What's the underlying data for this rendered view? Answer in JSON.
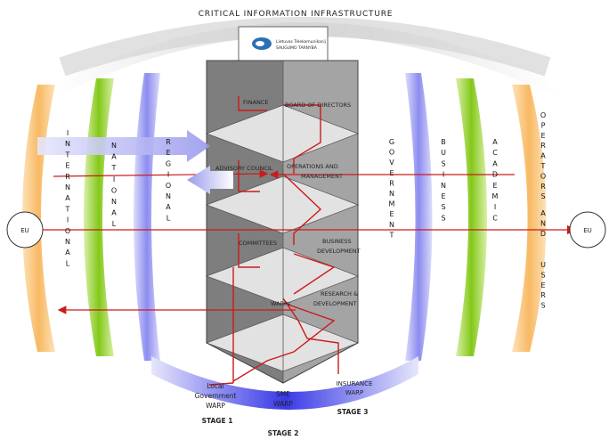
{
  "title": "CRITICAL INFORMATION INFRASTRUCTURE",
  "logo": {
    "line1": "Lietuvos Telekomunikacij",
    "line2": "SAUGUMO TARNYBA"
  },
  "tower_labels": {
    "finance": "FINANCE",
    "board": "BOARD OF DIRECTORS",
    "advisory": "ADVISORY COUNCIL",
    "operations_1": "OPERATIONS AND",
    "operations_2": "MANAGEMENT",
    "committees": "COMMITTEES",
    "business_dev_1": "BUSINESS",
    "business_dev_2": "DEVELOPMENT",
    "warps": "WARPs",
    "research_1": "RESEARCH &",
    "research_2": "DEVELOPMENT"
  },
  "side_words": {
    "international": "INTERNATIONAL",
    "national": "NATIONAL",
    "regional": "REGIONAL",
    "government": "GOVERNMENT",
    "business": "BUSINESS",
    "academic": "ACADEMIC",
    "operators_1": "OPERATORS",
    "operators_2": "AND",
    "operators_3": "USERS"
  },
  "eu_left": "EU",
  "eu_right": "EU",
  "bottom": {
    "local_1": "Local",
    "local_2": "Government",
    "local_3": "WARP",
    "sme_1": "SME",
    "sme_2": "WARP",
    "insurance_1": "INSURANCE",
    "insurance_2": "WARP",
    "stage1": "STAGE 1",
    "stage2": "STAGE 2",
    "stage3": "STAGE 3"
  },
  "colors": {
    "orange": "#f8b964",
    "green": "#8ccc1e",
    "blue": "#8f8ff2",
    "red": "#cc1a1a",
    "arc_grey": "#dcdcdc"
  }
}
